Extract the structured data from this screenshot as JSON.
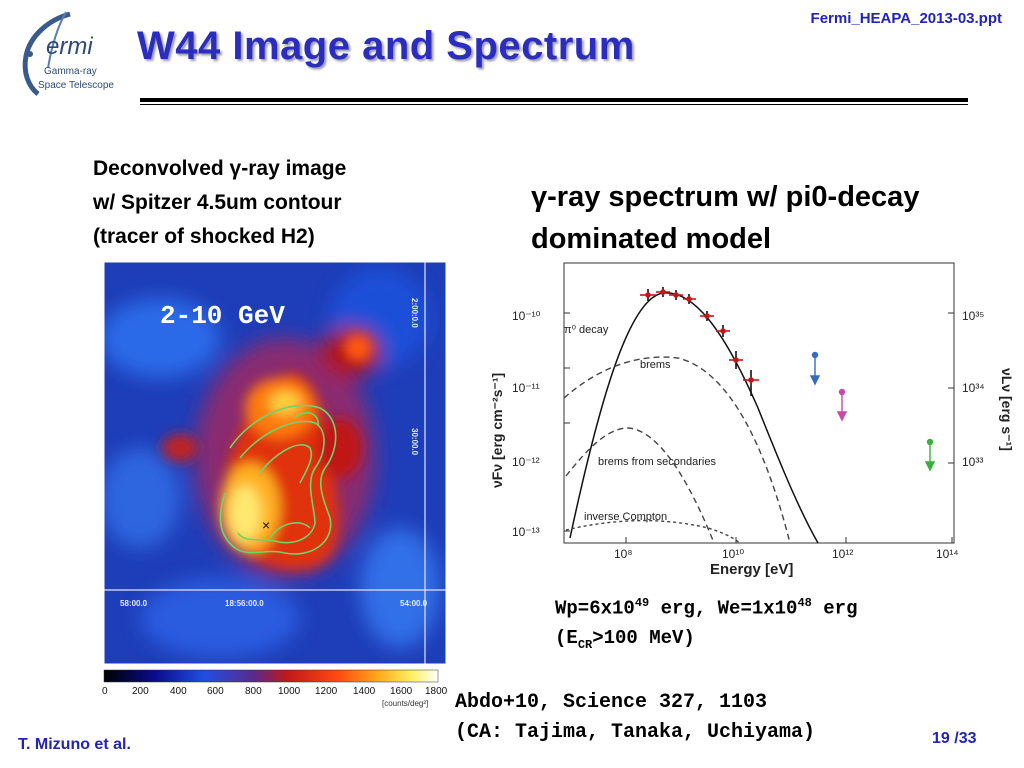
{
  "slide": {
    "title": "W44 Image and Spectrum",
    "file_ref": "Fermi_HEAPA_2013-03.ppt",
    "author": "T. Mizuno et al.",
    "page": "19 /33",
    "colors": {
      "title": "#2b2dbf",
      "footer": "#2323b5"
    }
  },
  "logo": {
    "name": "fermi-logo",
    "word": "ermi",
    "line1": "Gamma-ray",
    "line2": "Space Telescope"
  },
  "image_caption": {
    "line1": "Deconvolved γ-ray image",
    "line2": "w/ Spitzer 4.5um contour",
    "line3": "(tracer of shocked H2)"
  },
  "spectrum_caption": {
    "line1": "γ-ray spectrum w/ pi0-decay",
    "line2": "dominated model"
  },
  "sky_map": {
    "energy_band": "2-10 GeV",
    "dec_labels": [
      "2:00:0.0",
      "30:00.0"
    ],
    "ra_labels": [
      "58:00.0",
      "18:56:00.0",
      "54:00.0"
    ],
    "colorbar_ticks": [
      "0",
      "200",
      "400",
      "600",
      "800",
      "1000",
      "1200",
      "1400",
      "1600",
      "1800"
    ],
    "colorbar_unit": "[counts/deg²]"
  },
  "spectrum_plot": {
    "xlabel": "Energy [eV]",
    "ylabel_left": "νFν [erg cm⁻²s⁻¹]",
    "ylabel_right": "νLν [erg s⁻¹]",
    "x_ticks": [
      "10⁸",
      "10¹⁰",
      "10¹²",
      "10¹⁴"
    ],
    "y_ticks_left": [
      "10⁻¹⁰",
      "10⁻¹¹",
      "10⁻¹²",
      "10⁻¹³"
    ],
    "y_ticks_right": [
      "10³⁵",
      "10³⁴",
      "10³³"
    ],
    "labels": {
      "pi0": "π⁰ decay",
      "brems": "brems",
      "brems_sec": "brems from secondaries",
      "ic": "inverse Compton"
    }
  },
  "energy_note": {
    "line1_a": "Wp=6x10",
    "line1_exp1": "49",
    "line1_b": " erg, We=1x10",
    "line1_exp2": "48",
    "line1_c": " erg",
    "line2_a": "(E",
    "line2_sub": "CR",
    "line2_b": ">100 MeV)"
  },
  "reference": {
    "line1": "Abdo+10, Science 327, 1103",
    "line2": "(CA: Tajima, Tanaka, Uchiyama)"
  }
}
